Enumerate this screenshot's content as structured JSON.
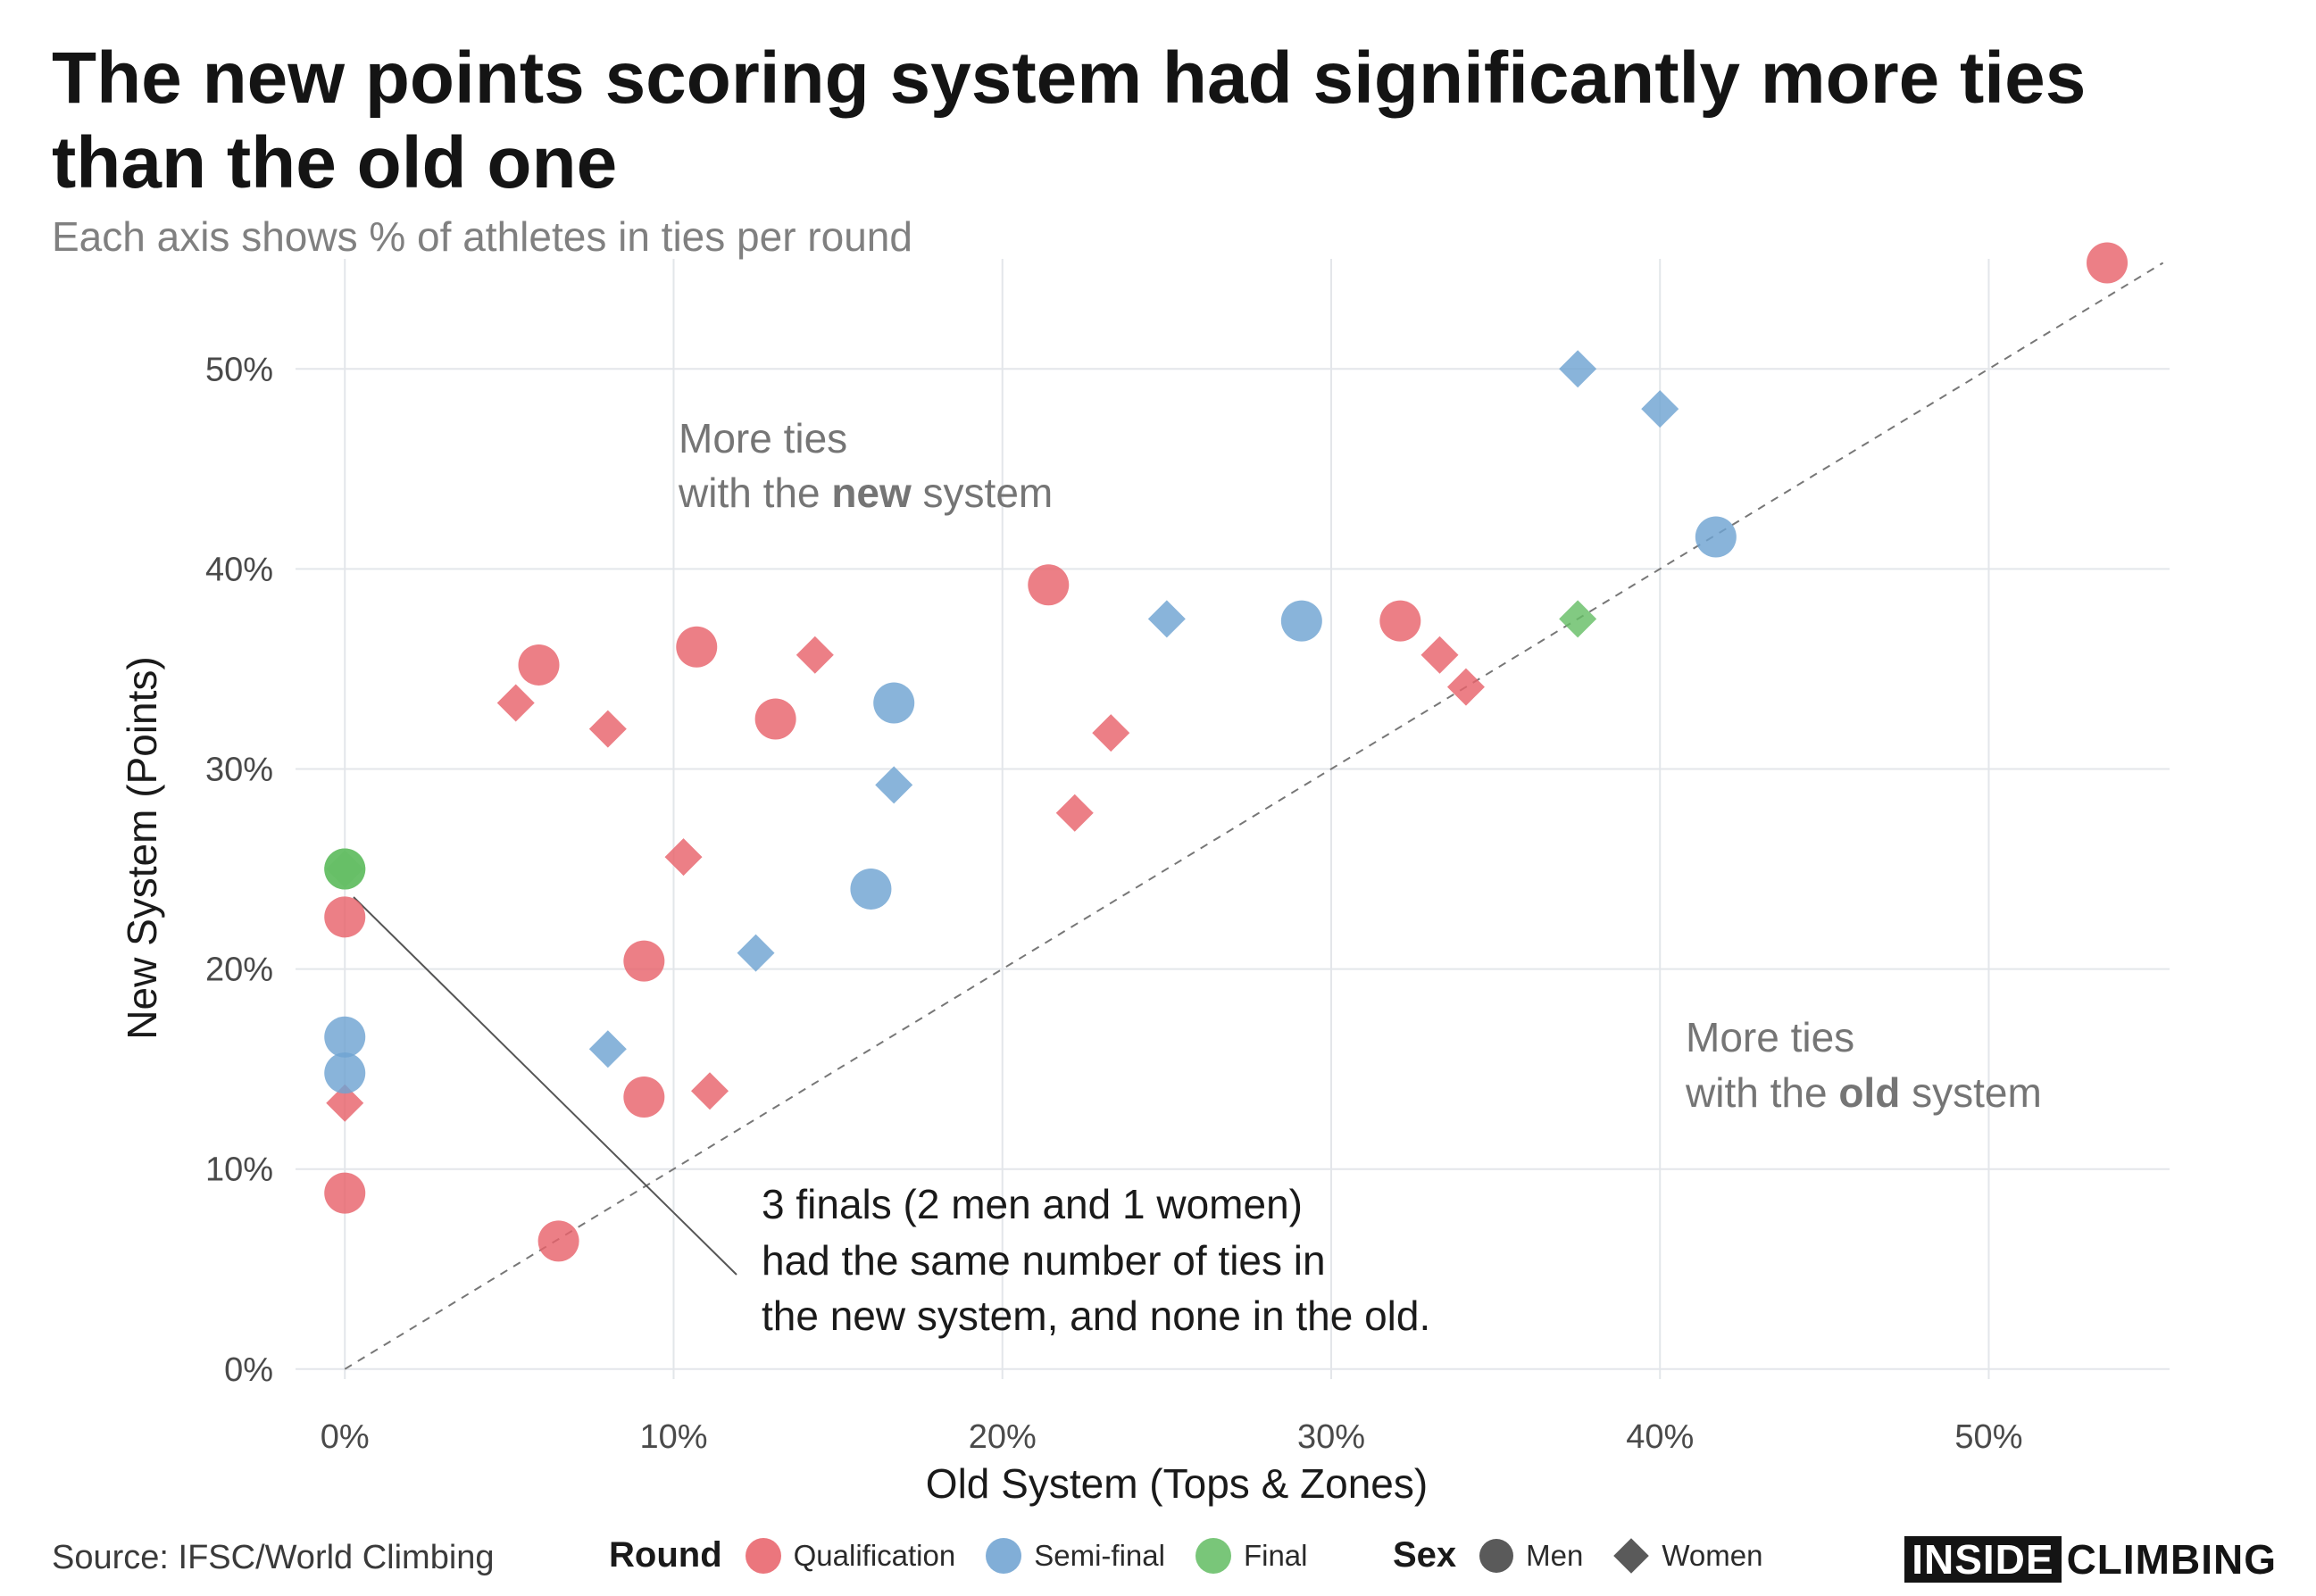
{
  "title": "The new points scoring system had significantly more ties than the old one",
  "subtitle": "Each axis shows % of athletes in ties per round",
  "source": "Source: IFSC/World Climbing",
  "logo": {
    "box_text": "INSIDE",
    "rest_text": "CLIMBING"
  },
  "colors": {
    "Qualification": "#e8636b",
    "Semi-final": "#6fa3d2",
    "Final": "#66be66",
    "reference_line": "#777777",
    "grid": "#e3e6ea"
  },
  "legend": {
    "round_title": "Round",
    "rounds": [
      "Qualification",
      "Semi-final",
      "Final"
    ],
    "sex_title": "Sex",
    "sexes": [
      "Men",
      "Women"
    ]
  },
  "annotations": {
    "upper_line1": "More ties",
    "upper_line2_pre": "with the ",
    "upper_line2_bold": "new",
    "upper_line2_post": " system",
    "lower_line1": "More ties",
    "lower_line2_pre": "with the ",
    "lower_line2_bold": "old",
    "lower_line2_post": " system",
    "callout": [
      "3 finals (2 men and 1 women)",
      "had the same number of ties in",
      "the new system, and none in the old."
    ]
  },
  "chart_data": {
    "type": "scatter",
    "xlabel": "Old System (Tops & Zones)",
    "ylabel": "New System (Points)",
    "xlim": [
      -1.5,
      55.5
    ],
    "ylim": [
      -0.5,
      55.5
    ],
    "xticks": [
      0,
      10,
      20,
      30,
      40,
      50
    ],
    "yticks": [
      0,
      10,
      20,
      30,
      40,
      50
    ],
    "tick_suffix": "%",
    "grid": true,
    "reference_line": "y = x (dashed)",
    "legend_position": "bottom",
    "points": [
      {
        "x": 53.6,
        "y": 55.3,
        "round": "Qualification",
        "sex": "Men"
      },
      {
        "x": 21.4,
        "y": 39.2,
        "round": "Qualification",
        "sex": "Men"
      },
      {
        "x": 32.1,
        "y": 37.4,
        "round": "Qualification",
        "sex": "Men"
      },
      {
        "x": 10.7,
        "y": 36.1,
        "round": "Qualification",
        "sex": "Men"
      },
      {
        "x": 5.9,
        "y": 35.2,
        "round": "Qualification",
        "sex": "Men"
      },
      {
        "x": 13.1,
        "y": 32.5,
        "round": "Qualification",
        "sex": "Men"
      },
      {
        "x": 0,
        "y": 22.6,
        "round": "Qualification",
        "sex": "Men"
      },
      {
        "x": 9.1,
        "y": 20.4,
        "round": "Qualification",
        "sex": "Men"
      },
      {
        "x": 9.1,
        "y": 13.6,
        "round": "Qualification",
        "sex": "Men"
      },
      {
        "x": 0,
        "y": 8.8,
        "round": "Qualification",
        "sex": "Men"
      },
      {
        "x": 6.5,
        "y": 6.4,
        "round": "Qualification",
        "sex": "Men"
      },
      {
        "x": 14.3,
        "y": 35.7,
        "round": "Qualification",
        "sex": "Women"
      },
      {
        "x": 5.2,
        "y": 33.3,
        "round": "Qualification",
        "sex": "Women"
      },
      {
        "x": 8.0,
        "y": 32.0,
        "round": "Qualification",
        "sex": "Women"
      },
      {
        "x": 23.3,
        "y": 31.8,
        "round": "Qualification",
        "sex": "Women"
      },
      {
        "x": 33.3,
        "y": 35.7,
        "round": "Qualification",
        "sex": "Women"
      },
      {
        "x": 34.1,
        "y": 34.1,
        "round": "Qualification",
        "sex": "Women"
      },
      {
        "x": 22.2,
        "y": 27.8,
        "round": "Qualification",
        "sex": "Women"
      },
      {
        "x": 10.3,
        "y": 25.6,
        "round": "Qualification",
        "sex": "Women"
      },
      {
        "x": 11.1,
        "y": 13.9,
        "round": "Qualification",
        "sex": "Women"
      },
      {
        "x": 0,
        "y": 13.3,
        "round": "Qualification",
        "sex": "Women"
      },
      {
        "x": 41.7,
        "y": 41.6,
        "round": "Semi-final",
        "sex": "Men"
      },
      {
        "x": 29.1,
        "y": 37.4,
        "round": "Semi-final",
        "sex": "Men"
      },
      {
        "x": 16.7,
        "y": 33.3,
        "round": "Semi-final",
        "sex": "Men"
      },
      {
        "x": 16.0,
        "y": 24.0,
        "round": "Semi-final",
        "sex": "Men"
      },
      {
        "x": 0,
        "y": 16.6,
        "round": "Semi-final",
        "sex": "Men"
      },
      {
        "x": 0,
        "y": 14.8,
        "round": "Semi-final",
        "sex": "Men"
      },
      {
        "x": 37.5,
        "y": 50.0,
        "round": "Semi-final",
        "sex": "Women"
      },
      {
        "x": 40.0,
        "y": 48.0,
        "round": "Semi-final",
        "sex": "Women"
      },
      {
        "x": 25.0,
        "y": 37.5,
        "round": "Semi-final",
        "sex": "Women"
      },
      {
        "x": 16.7,
        "y": 29.2,
        "round": "Semi-final",
        "sex": "Women"
      },
      {
        "x": 12.5,
        "y": 20.8,
        "round": "Semi-final",
        "sex": "Women"
      },
      {
        "x": 8.0,
        "y": 16.0,
        "round": "Semi-final",
        "sex": "Women"
      },
      {
        "x": 0,
        "y": 25.0,
        "round": "Final",
        "sex": "Men"
      },
      {
        "x": 0,
        "y": 25.0,
        "round": "Final",
        "sex": "Men"
      },
      {
        "x": 0,
        "y": 25.0,
        "round": "Final",
        "sex": "Women"
      },
      {
        "x": 37.5,
        "y": 37.5,
        "round": "Final",
        "sex": "Women"
      }
    ]
  }
}
